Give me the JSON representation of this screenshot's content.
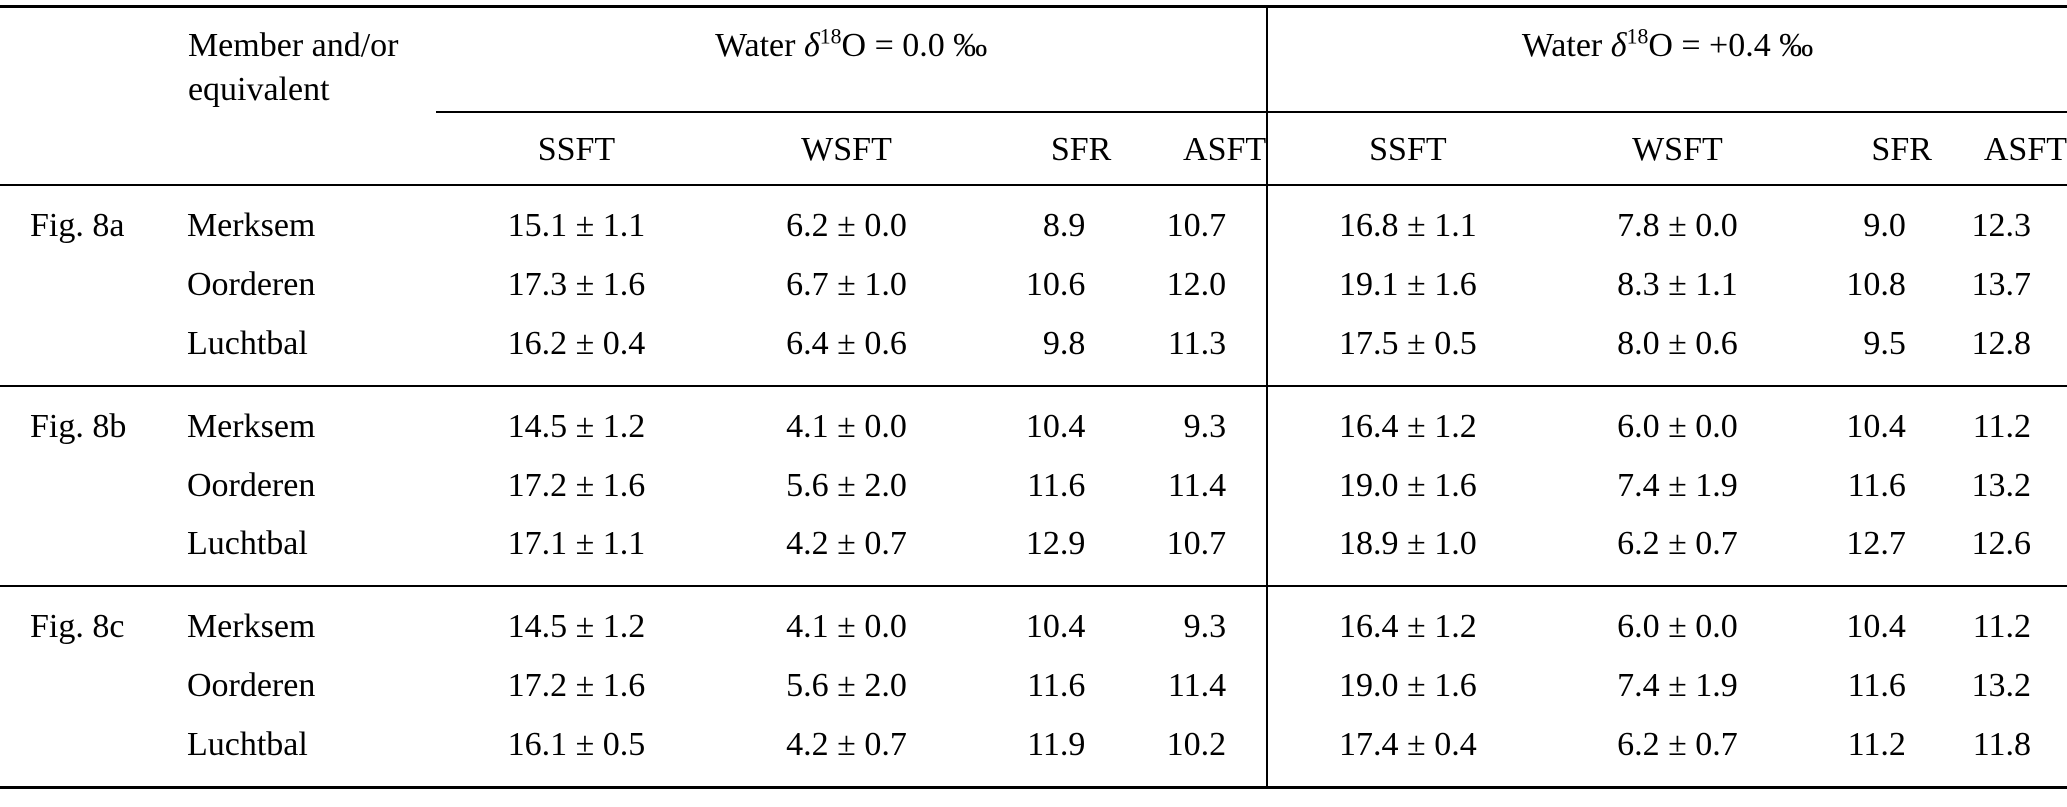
{
  "table": {
    "member_header": "Member and/or equivalent",
    "groups": [
      {
        "prefix": "Water ",
        "delta": "δ",
        "sup": "18",
        "rest": "O = 0.0 ‰"
      },
      {
        "prefix": "Water ",
        "delta": "δ",
        "sup": "18",
        "rest": "O = +0.4 ‰"
      }
    ],
    "columns": [
      "SSFT",
      "WSFT",
      "SFR",
      "ASFT"
    ],
    "sections": [
      {
        "fig": "Fig. 8a",
        "rows": [
          {
            "member": "Merksem",
            "values": [
              "15.1 ± 1.1",
              "6.2 ± 0.0",
              "8.9",
              "10.7",
              "16.8 ± 1.1",
              "7.8 ± 0.0",
              "9.0",
              "12.3"
            ]
          },
          {
            "member": "Oorderen",
            "values": [
              "17.3 ± 1.6",
              "6.7 ± 1.0",
              "10.6",
              "12.0",
              "19.1 ± 1.6",
              "8.3 ± 1.1",
              "10.8",
              "13.7"
            ]
          },
          {
            "member": "Luchtbal",
            "values": [
              "16.2 ± 0.4",
              "6.4 ± 0.6",
              "9.8",
              "11.3",
              "17.5 ± 0.5",
              "8.0 ± 0.6",
              "9.5",
              "12.8"
            ]
          }
        ]
      },
      {
        "fig": "Fig. 8b",
        "rows": [
          {
            "member": "Merksem",
            "values": [
              "14.5 ± 1.2",
              "4.1 ± 0.0",
              "10.4",
              "9.3",
              "16.4 ± 1.2",
              "6.0 ± 0.0",
              "10.4",
              "11.2"
            ]
          },
          {
            "member": "Oorderen",
            "values": [
              "17.2 ± 1.6",
              "5.6 ± 2.0",
              "11.6",
              "11.4",
              "19.0 ± 1.6",
              "7.4 ± 1.9",
              "11.6",
              "13.2"
            ]
          },
          {
            "member": "Luchtbal",
            "values": [
              "17.1 ± 1.1",
              "4.2 ± 0.7",
              "12.9",
              "10.7",
              "18.9 ± 1.0",
              "6.2 ± 0.7",
              "12.7",
              "12.6"
            ]
          }
        ]
      },
      {
        "fig": "Fig. 8c",
        "rows": [
          {
            "member": "Merksem",
            "values": [
              "14.5 ± 1.2",
              "4.1 ± 0.0",
              "10.4",
              "9.3",
              "16.4 ± 1.2",
              "6.0 ± 0.0",
              "10.4",
              "11.2"
            ]
          },
          {
            "member": "Oorderen",
            "values": [
              "17.2 ± 1.6",
              "5.6 ± 2.0",
              "11.6",
              "11.4",
              "19.0 ± 1.6",
              "7.4 ± 1.9",
              "11.6",
              "13.2"
            ]
          },
          {
            "member": "Luchtbal",
            "values": [
              "16.1 ± 0.5",
              "4.2 ± 0.7",
              "11.9",
              "10.2",
              "17.4 ± 0.4",
              "6.2 ± 0.7",
              "11.2",
              "11.8"
            ]
          }
        ]
      }
    ]
  }
}
